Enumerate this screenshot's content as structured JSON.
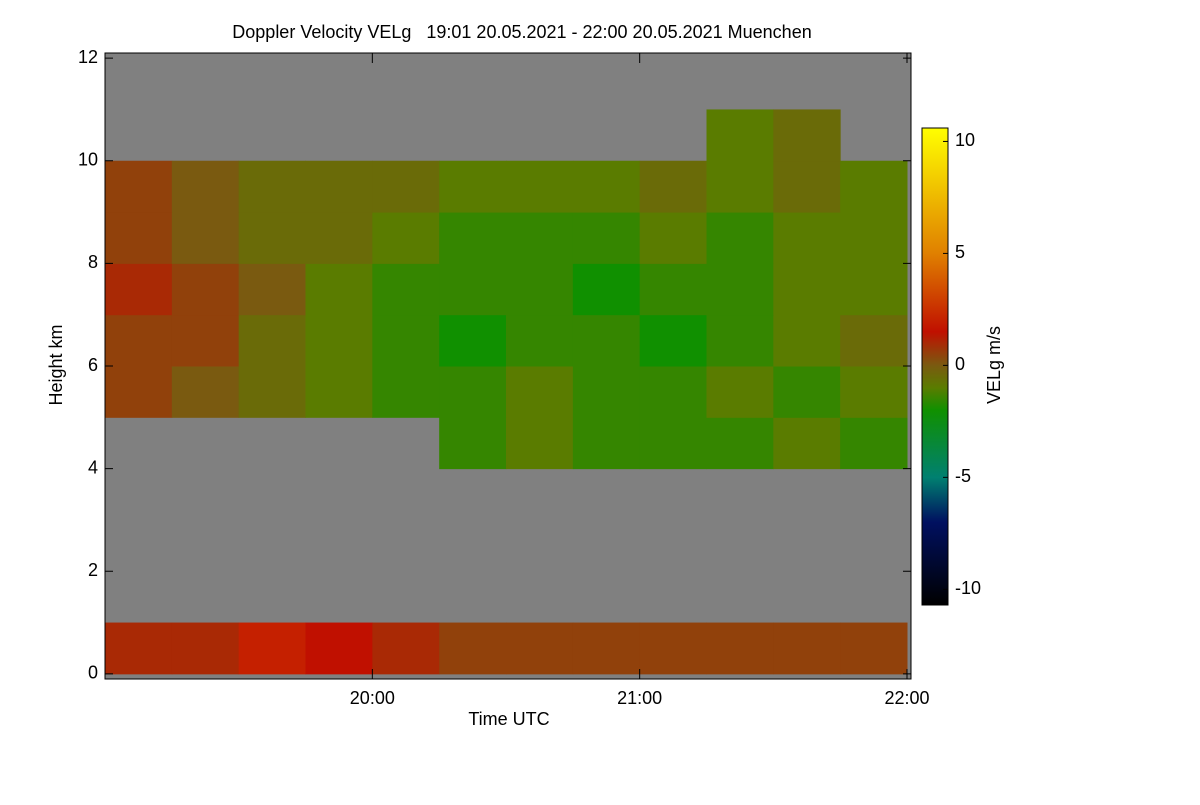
{
  "chart_data": {
    "type": "heatmap",
    "title": "Doppler Velocity VELg   19:01 20.05.2021 - 22:00 20.05.2021 Muenchen",
    "x_label": "Time UTC",
    "y_label": "Height km",
    "colorbar_label": "VELg m/s",
    "x": [
      19.125,
      19.375,
      19.625,
      19.875,
      20.125,
      20.375,
      20.625,
      20.875,
      21.125,
      21.375,
      21.625,
      21.875
    ],
    "y": [
      0.5,
      1.5,
      2.5,
      3.5,
      4.5,
      5.5,
      6.5,
      7.5,
      8.5,
      9.5,
      10.5,
      11.5
    ],
    "values": [
      [
        1,
        1,
        2,
        1.5,
        1,
        0.5,
        0.5,
        0.5,
        0.5,
        0.5,
        0.5,
        0.5
      ],
      [
        null,
        null,
        null,
        null,
        null,
        null,
        null,
        null,
        null,
        null,
        null,
        null
      ],
      [
        null,
        null,
        null,
        null,
        null,
        null,
        null,
        null,
        null,
        null,
        null,
        null
      ],
      [
        null,
        null,
        null,
        null,
        null,
        null,
        null,
        null,
        null,
        null,
        null,
        null
      ],
      [
        null,
        null,
        null,
        null,
        null,
        -1.5,
        -1,
        -1.5,
        -1.5,
        -1.5,
        -1,
        -1.5
      ],
      [
        0.5,
        0,
        -0.5,
        -1,
        -1.5,
        -1.5,
        -1,
        -1.5,
        -1.5,
        -1,
        -1.5,
        -1
      ],
      [
        0.5,
        0.5,
        -0.5,
        -1,
        -1.5,
        -2,
        -1.5,
        -1.5,
        -2,
        -1.5,
        -1,
        -0.5
      ],
      [
        1,
        0.5,
        0,
        -1,
        -1.5,
        -1.5,
        -1.5,
        -2,
        -1.5,
        -1.5,
        -1,
        -1
      ],
      [
        0.5,
        0,
        -0.5,
        -0.5,
        -1,
        -1.5,
        -1.5,
        -1.5,
        -1,
        -1.5,
        -1,
        -1
      ],
      [
        0.5,
        0,
        -0.5,
        -0.5,
        -0.5,
        -1,
        -1,
        -1,
        -0.5,
        -1,
        -0.5,
        -1
      ],
      [
        null,
        null,
        null,
        null,
        null,
        null,
        null,
        null,
        null,
        -1,
        -0.5,
        null
      ],
      [
        null,
        null,
        null,
        null,
        null,
        null,
        null,
        null,
        null,
        null,
        null,
        null
      ]
    ],
    "xlim": [
      19.0,
      22.0
    ],
    "xticks": [
      {
        "value": 20,
        "label": "20:00"
      },
      {
        "value": 21,
        "label": "21:00"
      },
      {
        "value": 22,
        "label": "22:00"
      }
    ],
    "ylim": [
      -0.1,
      12.1
    ],
    "yticks": [
      0,
      2,
      4,
      6,
      8,
      10,
      12
    ],
    "zlim": [
      -10.7,
      10.6
    ],
    "zticks": [
      -10,
      -5,
      0,
      5,
      10
    ],
    "colormap": [
      [
        -10.7,
        "#000000"
      ],
      [
        -7,
        "#001060"
      ],
      [
        -5,
        "#008070"
      ],
      [
        -2,
        "#109000"
      ],
      [
        -1,
        "#5a7c00"
      ],
      [
        0,
        "#7a5a10"
      ],
      [
        1.5,
        "#c01000"
      ],
      [
        5,
        "#e08000"
      ],
      [
        10.6,
        "#ffff00"
      ]
    ],
    "missing_color": "#808080"
  }
}
